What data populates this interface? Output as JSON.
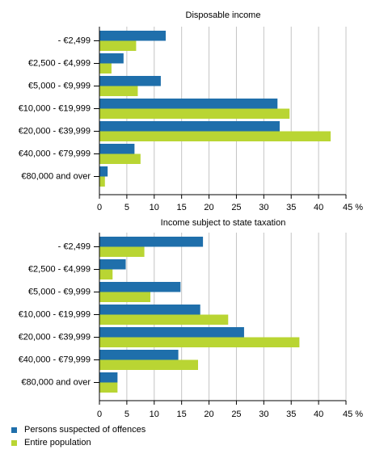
{
  "chart_data": [
    {
      "type": "bar",
      "orientation": "horizontal",
      "title": "Disposable income",
      "categories": [
        "- €2,499",
        "€2,500 - €4,999",
        "€5,000 - €9,999",
        "€10,000 - €19,999",
        "€20,000 - €39,999",
        "€40,000 - €79,999",
        "€80,000 and over"
      ],
      "series": [
        {
          "name": "Persons suspected of offences",
          "color": "#1f6fab",
          "values": [
            12.1,
            4.4,
            11.2,
            32.5,
            32.9,
            6.4,
            1.5
          ]
        },
        {
          "name": "Entire population",
          "color": "#b9d533",
          "values": [
            6.7,
            2.2,
            7.0,
            34.7,
            42.2,
            7.5,
            1.0
          ]
        }
      ],
      "xlim": [
        0,
        45
      ],
      "xticks": [
        "0",
        "5",
        "10",
        "15",
        "20",
        "25",
        "30",
        "35",
        "40",
        "45 %"
      ],
      "grid": true
    },
    {
      "type": "bar",
      "orientation": "horizontal",
      "title": "Income subject to state taxation",
      "categories": [
        "- €2,499",
        "€2,500 - €4,999",
        "€5,000 - €9,999",
        "€10,000 - €19,999",
        "€20,000 - €39,999",
        "€40,000 - €79,999",
        "€80,000 and over"
      ],
      "series": [
        {
          "name": "Persons suspected of offences",
          "color": "#1f6fab",
          "values": [
            18.9,
            4.8,
            14.8,
            18.4,
            26.4,
            14.4,
            3.3
          ]
        },
        {
          "name": "Entire population",
          "color": "#b9d533",
          "values": [
            8.2,
            2.4,
            9.3,
            23.5,
            36.5,
            18.0,
            3.3
          ]
        }
      ],
      "xlim": [
        0,
        45
      ],
      "xticks": [
        "0",
        "5",
        "10",
        "15",
        "20",
        "25",
        "30",
        "35",
        "40",
        "45 %"
      ],
      "grid": true
    }
  ],
  "legend": {
    "placement": "bottom-left",
    "items": [
      {
        "label": "Persons suspected of offences",
        "color": "#1f6fab"
      },
      {
        "label": "Entire population",
        "color": "#b9d533"
      }
    ]
  }
}
